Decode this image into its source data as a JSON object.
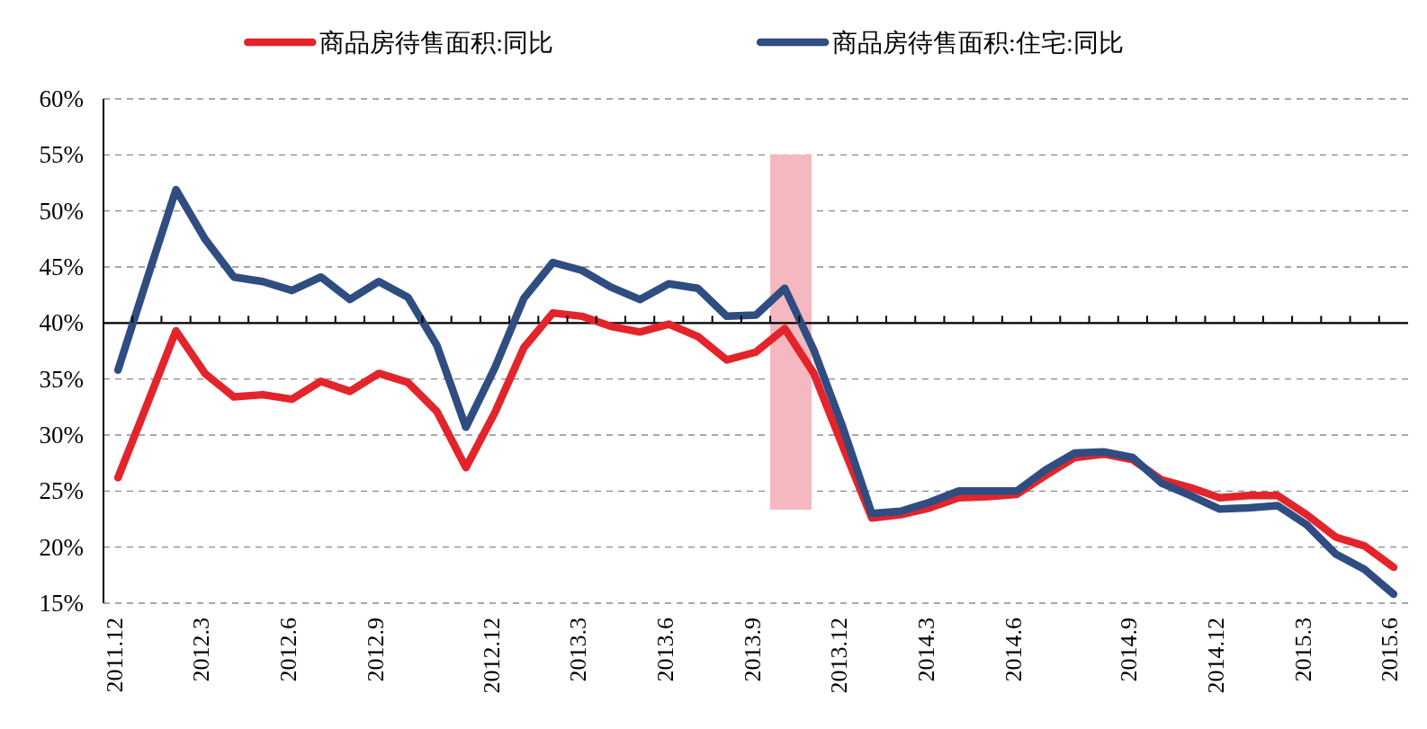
{
  "chart_data": {
    "type": "line",
    "categories": [
      "2011.12",
      null,
      null,
      "2012.3",
      null,
      null,
      "2012.6",
      null,
      null,
      "2012.9",
      null,
      null,
      null,
      "2012.12",
      null,
      null,
      "2013.3",
      null,
      null,
      "2013.6",
      null,
      null,
      "2013.9",
      null,
      null,
      "2013.12",
      null,
      null,
      "2014.3",
      null,
      null,
      "2014.6",
      null,
      null,
      null,
      "2014.9",
      null,
      null,
      "2014.12",
      null,
      null,
      "2015.3",
      null,
      null,
      "2015.6"
    ],
    "series": [
      {
        "name": "商品房待售面积:同比",
        "color": "#e3242b",
        "values": [
          26.2,
          32.7,
          39.3,
          35.5,
          33.4,
          33.6,
          33.2,
          34.8,
          33.9,
          35.5,
          34.7,
          32.1,
          27.1,
          32.0,
          37.8,
          40.9,
          40.6,
          39.7,
          39.2,
          39.9,
          38.8,
          36.7,
          37.4,
          39.5,
          35.5,
          29.0,
          22.6,
          22.9,
          23.5,
          24.4,
          24.5,
          24.7,
          26.4,
          28.0,
          28.3,
          27.8,
          26.0,
          25.3,
          24.4,
          24.6,
          24.6,
          22.9,
          20.9,
          20.1,
          18.2
        ]
      },
      {
        "name": "商品房待售面积:住宅:同比",
        "color": "#2f4d80",
        "values": [
          35.8,
          43.9,
          51.9,
          47.5,
          44.1,
          43.7,
          42.9,
          44.1,
          42.1,
          43.7,
          42.3,
          38.0,
          30.7,
          36.0,
          42.2,
          45.4,
          44.7,
          43.2,
          42.1,
          43.5,
          43.1,
          40.6,
          40.7,
          43.1,
          37.6,
          30.7,
          23.0,
          23.2,
          24.0,
          25.0,
          25.0,
          25.0,
          26.9,
          28.4,
          28.5,
          28.0,
          25.7,
          24.6,
          23.4,
          23.5,
          23.7,
          22.0,
          19.4,
          18.0,
          15.8
        ]
      }
    ],
    "ylim": [
      15,
      60
    ],
    "yticks": [
      {
        "value": 15,
        "label": "15%"
      },
      {
        "value": 20,
        "label": "20%"
      },
      {
        "value": 25,
        "label": "25%"
      },
      {
        "value": 30,
        "label": "30%"
      },
      {
        "value": 35,
        "label": "35%"
      },
      {
        "value": 40,
        "label": "40%"
      },
      {
        "value": 45,
        "label": "45%"
      },
      {
        "value": 50,
        "label": "50%"
      },
      {
        "value": 55,
        "label": "55%"
      },
      {
        "value": 60,
        "label": "60%"
      }
    ],
    "grid": "y",
    "legend": "top",
    "ref_lines": [
      {
        "axis": "y",
        "value": 40,
        "color": "#000000"
      }
    ]
  }
}
